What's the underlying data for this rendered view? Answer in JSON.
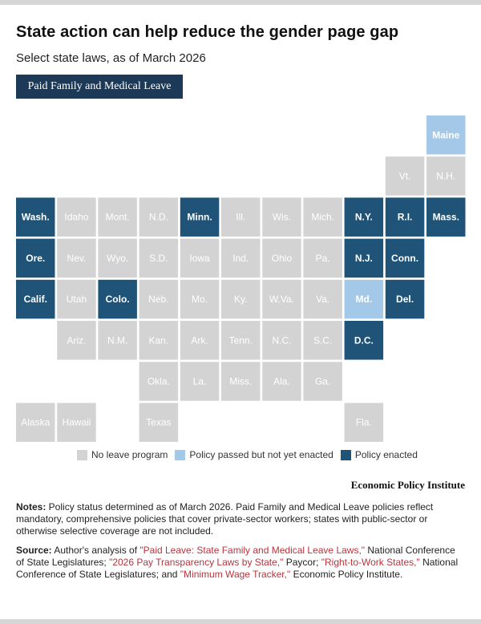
{
  "header": {
    "title": "State action can help reduce the gender page gap",
    "subtitle": "Select state laws, as of March 2026",
    "tab_label": "Paid Family and Medical Leave"
  },
  "colors": {
    "none": "#d3d3d3",
    "passed": "#a4c8e8",
    "enacted": "#1f5478",
    "tab_bg": "#1c3a57",
    "link": "#b8343d"
  },
  "chart_data": {
    "type": "tile-map",
    "title": "Paid Family and Medical Leave",
    "categories": {
      "none": "No leave program",
      "passed": "Policy passed but not yet enacted",
      "enacted": "Policy enacted"
    },
    "states": [
      {
        "label": "Maine",
        "row": 0,
        "col": 10,
        "status": "passed"
      },
      {
        "label": "Vt.",
        "row": 1,
        "col": 9,
        "status": "none"
      },
      {
        "label": "N.H.",
        "row": 1,
        "col": 10,
        "status": "none"
      },
      {
        "label": "Wash.",
        "row": 2,
        "col": 0,
        "status": "enacted"
      },
      {
        "label": "Idaho",
        "row": 2,
        "col": 1,
        "status": "none"
      },
      {
        "label": "Mont.",
        "row": 2,
        "col": 2,
        "status": "none"
      },
      {
        "label": "N.D.",
        "row": 2,
        "col": 3,
        "status": "none"
      },
      {
        "label": "Minn.",
        "row": 2,
        "col": 4,
        "status": "enacted"
      },
      {
        "label": "Ill.",
        "row": 2,
        "col": 5,
        "status": "none"
      },
      {
        "label": "Wis.",
        "row": 2,
        "col": 6,
        "status": "none"
      },
      {
        "label": "Mich.",
        "row": 2,
        "col": 7,
        "status": "none"
      },
      {
        "label": "N.Y.",
        "row": 2,
        "col": 8,
        "status": "enacted"
      },
      {
        "label": "R.I.",
        "row": 2,
        "col": 9,
        "status": "enacted"
      },
      {
        "label": "Mass.",
        "row": 2,
        "col": 10,
        "status": "enacted"
      },
      {
        "label": "Ore.",
        "row": 3,
        "col": 0,
        "status": "enacted"
      },
      {
        "label": "Nev.",
        "row": 3,
        "col": 1,
        "status": "none"
      },
      {
        "label": "Wyo.",
        "row": 3,
        "col": 2,
        "status": "none"
      },
      {
        "label": "S.D.",
        "row": 3,
        "col": 3,
        "status": "none"
      },
      {
        "label": "Iowa",
        "row": 3,
        "col": 4,
        "status": "none"
      },
      {
        "label": "Ind.",
        "row": 3,
        "col": 5,
        "status": "none"
      },
      {
        "label": "Ohio",
        "row": 3,
        "col": 6,
        "status": "none"
      },
      {
        "label": "Pa.",
        "row": 3,
        "col": 7,
        "status": "none"
      },
      {
        "label": "N.J.",
        "row": 3,
        "col": 8,
        "status": "enacted"
      },
      {
        "label": "Conn.",
        "row": 3,
        "col": 9,
        "status": "enacted"
      },
      {
        "label": "Calif.",
        "row": 4,
        "col": 0,
        "status": "enacted"
      },
      {
        "label": "Utah",
        "row": 4,
        "col": 1,
        "status": "none"
      },
      {
        "label": "Colo.",
        "row": 4,
        "col": 2,
        "status": "enacted"
      },
      {
        "label": "Neb.",
        "row": 4,
        "col": 3,
        "status": "none"
      },
      {
        "label": "Mo.",
        "row": 4,
        "col": 4,
        "status": "none"
      },
      {
        "label": "Ky.",
        "row": 4,
        "col": 5,
        "status": "none"
      },
      {
        "label": "W.Va.",
        "row": 4,
        "col": 6,
        "status": "none"
      },
      {
        "label": "Va.",
        "row": 4,
        "col": 7,
        "status": "none"
      },
      {
        "label": "Md.",
        "row": 4,
        "col": 8,
        "status": "passed"
      },
      {
        "label": "Del.",
        "row": 4,
        "col": 9,
        "status": "enacted"
      },
      {
        "label": "Ariz.",
        "row": 5,
        "col": 1,
        "status": "none"
      },
      {
        "label": "N.M.",
        "row": 5,
        "col": 2,
        "status": "none"
      },
      {
        "label": "Kan.",
        "row": 5,
        "col": 3,
        "status": "none"
      },
      {
        "label": "Ark.",
        "row": 5,
        "col": 4,
        "status": "none"
      },
      {
        "label": "Tenn.",
        "row": 5,
        "col": 5,
        "status": "none"
      },
      {
        "label": "N.C.",
        "row": 5,
        "col": 6,
        "status": "none"
      },
      {
        "label": "S.C.",
        "row": 5,
        "col": 7,
        "status": "none"
      },
      {
        "label": "D.C.",
        "row": 5,
        "col": 8,
        "status": "enacted"
      },
      {
        "label": "Okla.",
        "row": 6,
        "col": 3,
        "status": "none"
      },
      {
        "label": "La.",
        "row": 6,
        "col": 4,
        "status": "none"
      },
      {
        "label": "Miss.",
        "row": 6,
        "col": 5,
        "status": "none"
      },
      {
        "label": "Ala.",
        "row": 6,
        "col": 6,
        "status": "none"
      },
      {
        "label": "Ga.",
        "row": 6,
        "col": 7,
        "status": "none"
      },
      {
        "label": "Alaska",
        "row": 7,
        "col": 0,
        "status": "none"
      },
      {
        "label": "Hawaii",
        "row": 7,
        "col": 1,
        "status": "none"
      },
      {
        "label": "Texas",
        "row": 7,
        "col": 3,
        "status": "none"
      },
      {
        "label": "Fla.",
        "row": 7,
        "col": 8,
        "status": "none"
      }
    ]
  },
  "legend": {
    "none": "No leave program",
    "passed": "Policy passed but not yet enacted",
    "enacted": "Policy enacted"
  },
  "brand": "Economic Policy Institute",
  "notes": {
    "label": "Notes:",
    "text": " Policy status determined as of March 2026. Paid Family and Medical Leave policies reflect mandatory, comprehensive policies that cover private-sector workers; states with public-sector or otherwise selective coverage are not included."
  },
  "source": {
    "label": "Source:",
    "t1": " Author's analysis of ",
    "l1": "\"Paid Leave: State Family and Medical Leave Laws,\"",
    "t2": " National Conference of State Legislatures; ",
    "l2": "\"2026 Pay Transparency Laws by State,\"",
    "t3": " Paycor; ",
    "l3": "\"Right-to-Work States,\"",
    "t4": " National Conference of State Legislatures; and ",
    "l4": "\"Minimum Wage Tracker,\"",
    "t5": " Economic Policy Institute."
  }
}
